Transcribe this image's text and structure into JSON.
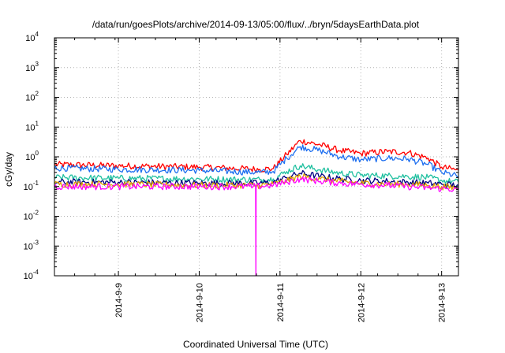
{
  "chart_data": {
    "type": "line",
    "title": "/data/run/goesPlots/archive/2014-09-13/05:00/flux/../bryn/5daysEarthData.plot",
    "xlabel": "Coordinated Universal Time (UTC)",
    "ylabel": "cGy/day",
    "yscale": "log",
    "xlim": [
      "2014-09-08T05:00",
      "2014-09-13T05:00"
    ],
    "ylim": [
      0.0001,
      10000
    ],
    "grid": true,
    "legend": "none",
    "x_ticks": [
      "2014-9-9",
      "2014-9-10",
      "2014-9-11",
      "2014-9-12",
      "2014-9-13"
    ],
    "y_ticks": [
      {
        "base": "10",
        "exp": "-4"
      },
      {
        "base": "10",
        "exp": "-3"
      },
      {
        "base": "10",
        "exp": "-2"
      },
      {
        "base": "10",
        "exp": "-1"
      },
      {
        "base": "10",
        "exp": "0"
      },
      {
        "base": "10",
        "exp": "1"
      },
      {
        "base": "10",
        "exp": "2"
      },
      {
        "base": "10",
        "exp": "3"
      },
      {
        "base": "10",
        "exp": "4"
      }
    ],
    "series": [
      {
        "color": "#ff0000",
        "x": [
          "2014-09-08T05:00",
          "2014-09-09T00:00",
          "2014-09-10T00:00",
          "2014-09-10T18:00",
          "2014-09-10T22:00",
          "2014-09-11T02:00",
          "2014-09-11T06:00",
          "2014-09-11T12:00",
          "2014-09-11T18:00",
          "2014-09-12T00:00",
          "2014-09-12T08:00",
          "2014-09-12T14:00",
          "2014-09-12T20:00",
          "2014-09-13T00:00",
          "2014-09-13T05:00"
        ],
        "y": [
          0.55,
          0.5,
          0.45,
          0.38,
          0.4,
          1.2,
          3.5,
          2.5,
          1.6,
          1.3,
          1.5,
          1.4,
          0.9,
          0.45,
          0.35
        ]
      },
      {
        "color": "#1e6ff0",
        "x": [
          "2014-09-08T05:00",
          "2014-09-09T00:00",
          "2014-09-10T00:00",
          "2014-09-10T18:00",
          "2014-09-10T22:00",
          "2014-09-11T02:00",
          "2014-09-11T06:00",
          "2014-09-11T12:00",
          "2014-09-11T18:00",
          "2014-09-12T00:00",
          "2014-09-12T08:00",
          "2014-09-12T14:00",
          "2014-09-12T20:00",
          "2014-09-13T00:00",
          "2014-09-13T05:00"
        ],
        "y": [
          0.42,
          0.38,
          0.35,
          0.3,
          0.32,
          0.9,
          2.2,
          1.6,
          1.0,
          0.8,
          0.9,
          0.85,
          0.55,
          0.3,
          0.22
        ]
      },
      {
        "color": "#20c0a0",
        "x": [
          "2014-09-08T05:00",
          "2014-09-09T00:00",
          "2014-09-10T00:00",
          "2014-09-10T18:00",
          "2014-09-10T22:00",
          "2014-09-11T02:00",
          "2014-09-11T06:00",
          "2014-09-11T12:00",
          "2014-09-11T18:00",
          "2014-09-12T00:00",
          "2014-09-12T08:00",
          "2014-09-12T14:00",
          "2014-09-12T20:00",
          "2014-09-13T00:00",
          "2014-09-13T05:00"
        ],
        "y": [
          0.2,
          0.19,
          0.18,
          0.17,
          0.18,
          0.32,
          0.5,
          0.36,
          0.28,
          0.24,
          0.23,
          0.22,
          0.2,
          0.16,
          0.14
        ]
      },
      {
        "color": "#000080",
        "x": [
          "2014-09-08T05:00",
          "2014-09-09T00:00",
          "2014-09-10T00:00",
          "2014-09-10T18:00",
          "2014-09-10T22:00",
          "2014-09-11T02:00",
          "2014-09-11T06:00",
          "2014-09-11T12:00",
          "2014-09-11T18:00",
          "2014-09-12T00:00",
          "2014-09-12T08:00",
          "2014-09-12T14:00",
          "2014-09-12T20:00",
          "2014-09-13T00:00",
          "2014-09-13T05:00"
        ],
        "y": [
          0.14,
          0.14,
          0.13,
          0.13,
          0.14,
          0.2,
          0.28,
          0.22,
          0.18,
          0.16,
          0.15,
          0.14,
          0.13,
          0.12,
          0.11
        ]
      },
      {
        "color": "#e0a000",
        "x": [
          "2014-09-08T05:00",
          "2014-09-09T00:00",
          "2014-09-10T00:00",
          "2014-09-10T18:00",
          "2014-09-10T22:00",
          "2014-09-11T02:00",
          "2014-09-11T06:00",
          "2014-09-11T12:00",
          "2014-09-11T18:00",
          "2014-09-12T00:00",
          "2014-09-12T08:00",
          "2014-09-12T14:00",
          "2014-09-12T20:00",
          "2014-09-13T00:00",
          "2014-09-13T05:00"
        ],
        "y": [
          0.12,
          0.12,
          0.11,
          0.11,
          0.12,
          0.16,
          0.22,
          0.18,
          0.15,
          0.13,
          0.12,
          0.12,
          0.11,
          0.1,
          0.09
        ]
      },
      {
        "color": "#ff00ff",
        "x": [
          "2014-09-08T05:00",
          "2014-09-09T00:00",
          "2014-09-10T00:00",
          "2014-09-10T16:00",
          "2014-09-10T16:45",
          "2014-09-10T16:50",
          "2014-09-10T16:55",
          "2014-09-10T22:00",
          "2014-09-11T02:00",
          "2014-09-11T06:00",
          "2014-09-11T12:00",
          "2014-09-11T18:00",
          "2014-09-12T00:00",
          "2014-09-12T08:00",
          "2014-09-12T14:00",
          "2014-09-12T20:00",
          "2014-09-13T00:00",
          "2014-09-13T05:00"
        ],
        "y": [
          0.1,
          0.1,
          0.1,
          0.1,
          0.1,
          0.0001,
          0.1,
          0.11,
          0.14,
          0.18,
          0.15,
          0.13,
          0.12,
          0.11,
          0.1,
          0.09,
          0.085,
          0.08
        ]
      }
    ]
  }
}
